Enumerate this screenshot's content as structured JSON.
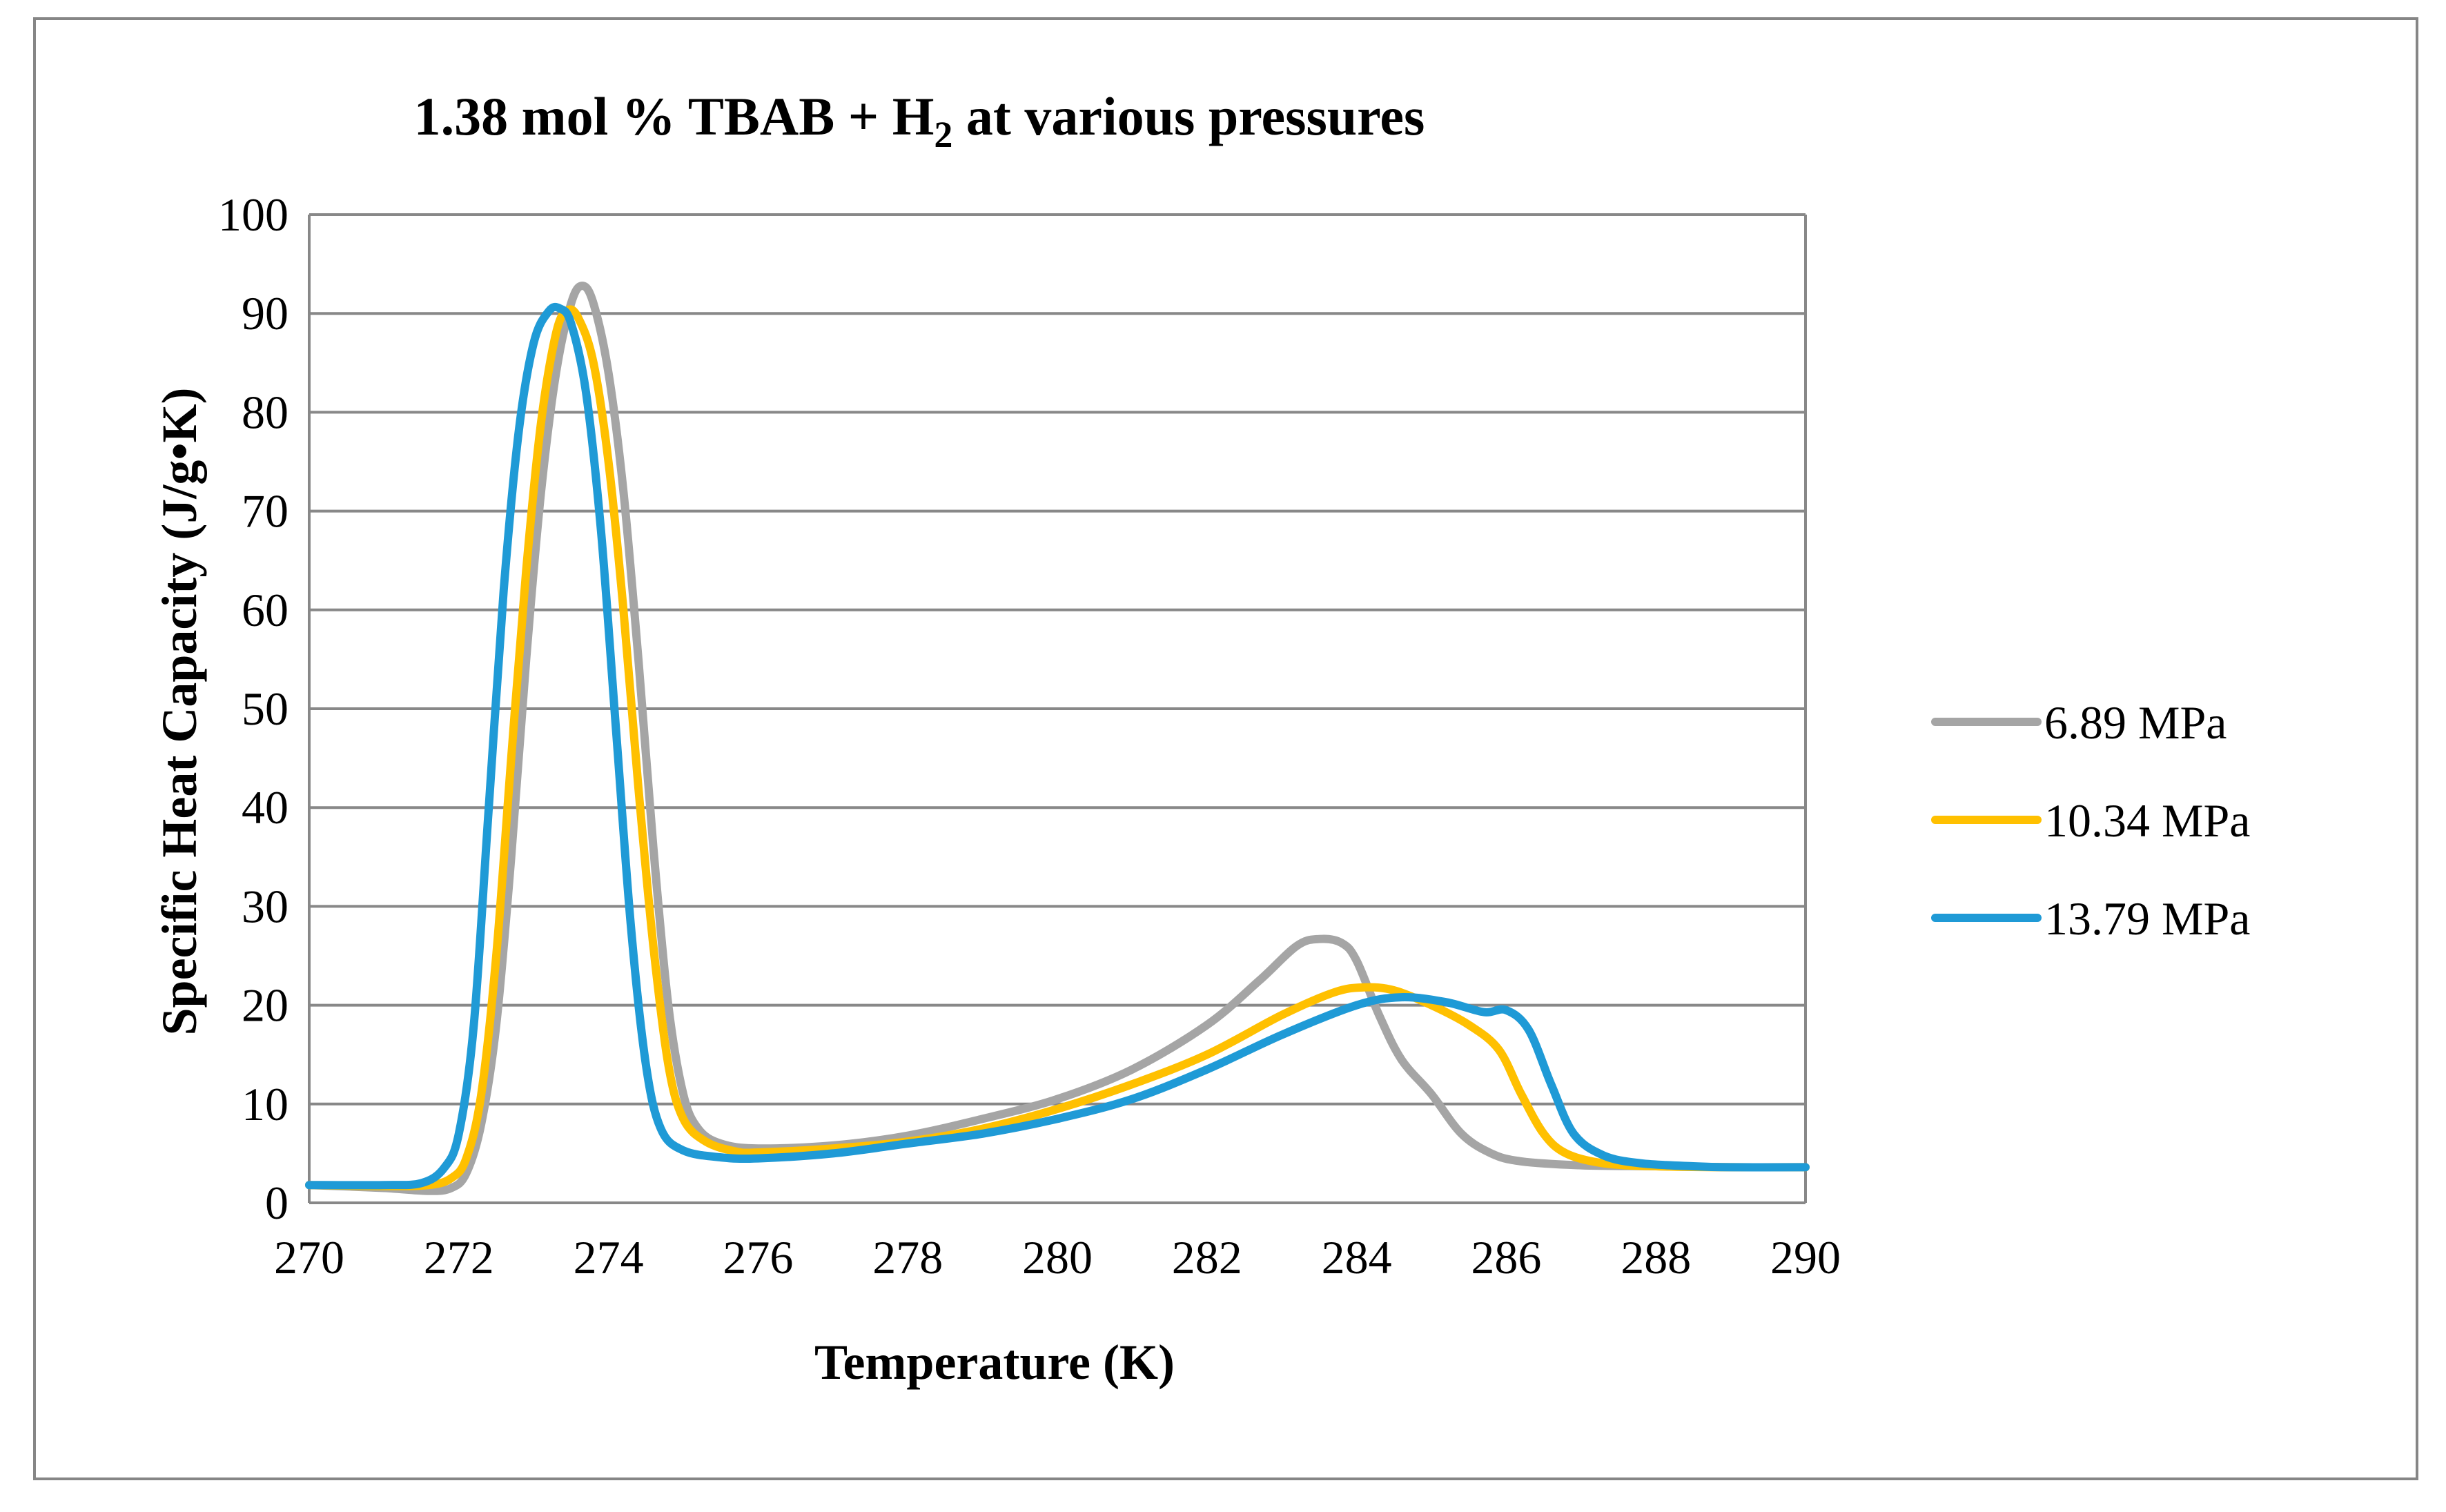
{
  "chart_data": {
    "type": "line",
    "title": "1.38 mol % TBAB + H",
    "title_subscript": "2",
    "title_suffix": " at various pressures",
    "xlabel": "Temperature (K)",
    "ylabel": "Specific Heat Capacity (J/g•K)",
    "xlim": [
      270,
      290
    ],
    "ylim": [
      0,
      100
    ],
    "x_ticks": [
      270,
      272,
      274,
      276,
      278,
      280,
      282,
      284,
      286,
      288,
      290
    ],
    "y_ticks": [
      0,
      10,
      20,
      30,
      40,
      50,
      60,
      70,
      80,
      90,
      100
    ],
    "grid": true,
    "legend_position": "right",
    "series": [
      {
        "name": "6.89 MPa",
        "color": "#a5a5a5",
        "points": [
          [
            270,
            1.8
          ],
          [
            271,
            1.5
          ],
          [
            271.6,
            1.2
          ],
          [
            271.9,
            1.5
          ],
          [
            272.1,
            3
          ],
          [
            272.3,
            8
          ],
          [
            272.5,
            18
          ],
          [
            272.7,
            35
          ],
          [
            272.9,
            55
          ],
          [
            273.1,
            72
          ],
          [
            273.3,
            84
          ],
          [
            273.5,
            91
          ],
          [
            273.65,
            92.8
          ],
          [
            273.8,
            91
          ],
          [
            274.0,
            84
          ],
          [
            274.2,
            72
          ],
          [
            274.4,
            55
          ],
          [
            274.6,
            36
          ],
          [
            274.8,
            20
          ],
          [
            275.0,
            11
          ],
          [
            275.2,
            7.5
          ],
          [
            275.5,
            6
          ],
          [
            276,
            5.5
          ],
          [
            277,
            5.8
          ],
          [
            278,
            6.8
          ],
          [
            279,
            8.5
          ],
          [
            280,
            10.5
          ],
          [
            281,
            13.5
          ],
          [
            282,
            18
          ],
          [
            282.7,
            22.5
          ],
          [
            283.2,
            26
          ],
          [
            283.5,
            26.7
          ],
          [
            283.8,
            26.3
          ],
          [
            284.0,
            24.5
          ],
          [
            284.3,
            19
          ],
          [
            284.6,
            14.5
          ],
          [
            285.0,
            11
          ],
          [
            285.4,
            7
          ],
          [
            285.8,
            5
          ],
          [
            286.2,
            4.2
          ],
          [
            287,
            3.8
          ],
          [
            288,
            3.7
          ],
          [
            289,
            3.6
          ],
          [
            290,
            3.6
          ]
        ]
      },
      {
        "name": "10.34 MPa",
        "color": "#ffc000",
        "points": [
          [
            270,
            1.8
          ],
          [
            271,
            1.7
          ],
          [
            271.6,
            1.8
          ],
          [
            271.9,
            2.5
          ],
          [
            272.1,
            4.5
          ],
          [
            272.3,
            11
          ],
          [
            272.5,
            25
          ],
          [
            272.7,
            45
          ],
          [
            272.9,
            64
          ],
          [
            273.1,
            79
          ],
          [
            273.3,
            88
          ],
          [
            273.45,
            90.3
          ],
          [
            273.6,
            89.5
          ],
          [
            273.8,
            85
          ],
          [
            274.0,
            75
          ],
          [
            274.2,
            60
          ],
          [
            274.4,
            42
          ],
          [
            274.6,
            26
          ],
          [
            274.8,
            14
          ],
          [
            275.0,
            8.5
          ],
          [
            275.3,
            6.2
          ],
          [
            275.7,
            5.2
          ],
          [
            276,
            5.1
          ],
          [
            277,
            5.5
          ],
          [
            278,
            6.2
          ],
          [
            279,
            7.5
          ],
          [
            280,
            9.5
          ],
          [
            281,
            12
          ],
          [
            282,
            15
          ],
          [
            283,
            19
          ],
          [
            283.7,
            21.3
          ],
          [
            284.1,
            21.8
          ],
          [
            284.5,
            21.5
          ],
          [
            285.0,
            20
          ],
          [
            285.5,
            18
          ],
          [
            285.9,
            15.5
          ],
          [
            286.2,
            11
          ],
          [
            286.5,
            7
          ],
          [
            286.8,
            5
          ],
          [
            287.3,
            4
          ],
          [
            288,
            3.7
          ],
          [
            289,
            3.6
          ],
          [
            290,
            3.6
          ]
        ]
      },
      {
        "name": "13.79 MPa",
        "color": "#1f9ad6",
        "points": [
          [
            270,
            1.8
          ],
          [
            271,
            1.8
          ],
          [
            271.5,
            2
          ],
          [
            271.8,
            3.5
          ],
          [
            272.0,
            7
          ],
          [
            272.2,
            18
          ],
          [
            272.4,
            40
          ],
          [
            272.6,
            62
          ],
          [
            272.8,
            78
          ],
          [
            273.0,
            87
          ],
          [
            273.2,
            90.2
          ],
          [
            273.35,
            90.5
          ],
          [
            273.5,
            89
          ],
          [
            273.7,
            82
          ],
          [
            273.9,
            68
          ],
          [
            274.1,
            48
          ],
          [
            274.3,
            28
          ],
          [
            274.5,
            14
          ],
          [
            274.7,
            7.5
          ],
          [
            275.0,
            5.3
          ],
          [
            275.5,
            4.6
          ],
          [
            276,
            4.5
          ],
          [
            277,
            5
          ],
          [
            278,
            6
          ],
          [
            279,
            7
          ],
          [
            280,
            8.5
          ],
          [
            281,
            10.5
          ],
          [
            282,
            13.5
          ],
          [
            283,
            17
          ],
          [
            284,
            20
          ],
          [
            284.6,
            20.8
          ],
          [
            285.2,
            20.3
          ],
          [
            285.7,
            19.3
          ],
          [
            286.0,
            19.5
          ],
          [
            286.3,
            17.5
          ],
          [
            286.6,
            12
          ],
          [
            286.9,
            7
          ],
          [
            287.3,
            4.8
          ],
          [
            287.8,
            4
          ],
          [
            288.5,
            3.7
          ],
          [
            289,
            3.6
          ],
          [
            290,
            3.6
          ]
        ]
      }
    ]
  }
}
